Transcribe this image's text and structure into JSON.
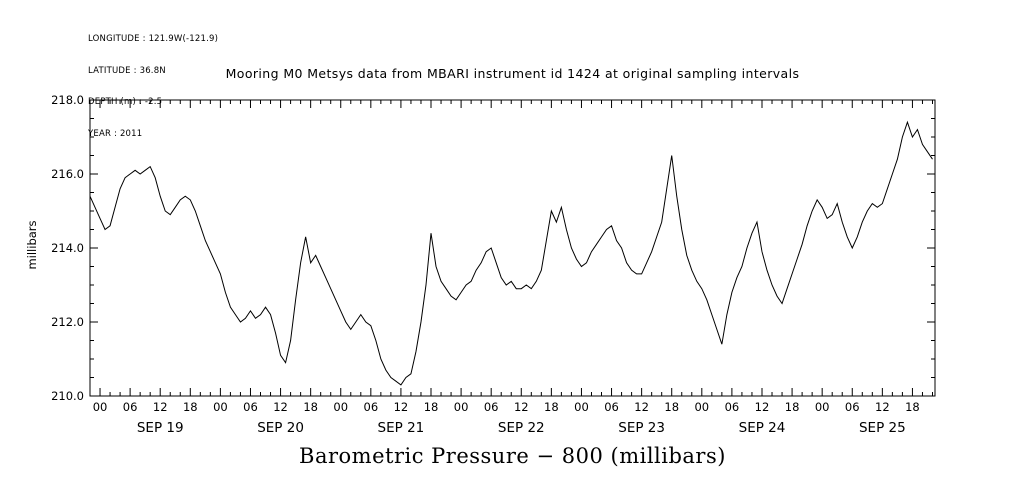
{
  "meta": {
    "lines": [
      "LONGITUDE : 121.9W(-121.9)",
      "LATITUDE : 36.8N",
      "DEPTH (m) : -2.5",
      "YEAR : 2011"
    ]
  },
  "chart_data": {
    "type": "line",
    "title": "Mooring M0 Metsys data from MBARI instrument id 1424 at original sampling intervals",
    "xlabel": "Barometric Pressure − 800 (millibars)",
    "ylabel": "millibars",
    "ylim": [
      210.0,
      218.0
    ],
    "y_major_step": 2.0,
    "y_minor_step": 0.5,
    "y_tick_labels": [
      "210.0",
      "212.0",
      "214.0",
      "216.0",
      "218.0"
    ],
    "x_domain_hours": [
      -2,
      166.5
    ],
    "x_major_step_hours": 6,
    "x_minor_step_hours": 2,
    "x_hour_tick_labels": [
      "00",
      "06",
      "12",
      "18"
    ],
    "days": [
      "SEP 19",
      "SEP 20",
      "SEP 21",
      "SEP 22",
      "SEP 23",
      "SEP 24",
      "SEP 25"
    ],
    "grid": false,
    "legend": "none",
    "line_color": "#000000",
    "series": [
      {
        "name": "barometric_pressure_minus_800_mb",
        "start_hour": -2,
        "step_hours": 1,
        "values": [
          215.4,
          215.1,
          214.8,
          214.5,
          214.6,
          215.1,
          215.6,
          215.9,
          216.0,
          216.1,
          216.0,
          216.1,
          216.2,
          215.9,
          215.4,
          215.0,
          214.9,
          215.1,
          215.3,
          215.4,
          215.3,
          215.0,
          214.6,
          214.2,
          213.9,
          213.6,
          213.3,
          212.8,
          212.4,
          212.2,
          212.0,
          212.1,
          212.3,
          212.1,
          212.2,
          212.4,
          212.2,
          211.7,
          211.1,
          210.9,
          211.5,
          212.6,
          213.6,
          214.3,
          213.6,
          213.8,
          213.5,
          213.2,
          212.9,
          212.6,
          212.3,
          212.0,
          211.8,
          212.0,
          212.2,
          212.0,
          211.9,
          211.5,
          211.0,
          210.7,
          210.5,
          210.4,
          210.3,
          210.5,
          210.6,
          211.2,
          212.0,
          213.0,
          214.4,
          213.5,
          213.1,
          212.9,
          212.7,
          212.6,
          212.8,
          213.0,
          213.1,
          213.4,
          213.6,
          213.9,
          214.0,
          213.6,
          213.2,
          213.0,
          213.1,
          212.9,
          212.9,
          213.0,
          212.9,
          213.1,
          213.4,
          214.2,
          215.0,
          214.7,
          215.1,
          214.5,
          214.0,
          213.7,
          213.5,
          213.6,
          213.9,
          214.1,
          214.3,
          214.5,
          214.6,
          214.2,
          214.0,
          213.6,
          213.4,
          213.3,
          213.3,
          213.6,
          213.9,
          214.3,
          214.7,
          215.6,
          216.5,
          215.4,
          214.5,
          213.8,
          213.4,
          213.1,
          212.9,
          212.6,
          212.2,
          211.8,
          211.4,
          212.2,
          212.8,
          213.2,
          213.5,
          214.0,
          214.4,
          214.7,
          213.9,
          213.4,
          213.0,
          212.7,
          212.5,
          212.9,
          213.3,
          213.7,
          214.1,
          214.6,
          215.0,
          215.3,
          215.1,
          214.8,
          214.9,
          215.2,
          214.7,
          214.3,
          214.0,
          214.3,
          214.7,
          215.0,
          215.2,
          215.1,
          215.2,
          215.6,
          216.0,
          216.4,
          217.0,
          217.4,
          217.0,
          217.2,
          216.8,
          216.6,
          216.4
        ]
      }
    ]
  }
}
